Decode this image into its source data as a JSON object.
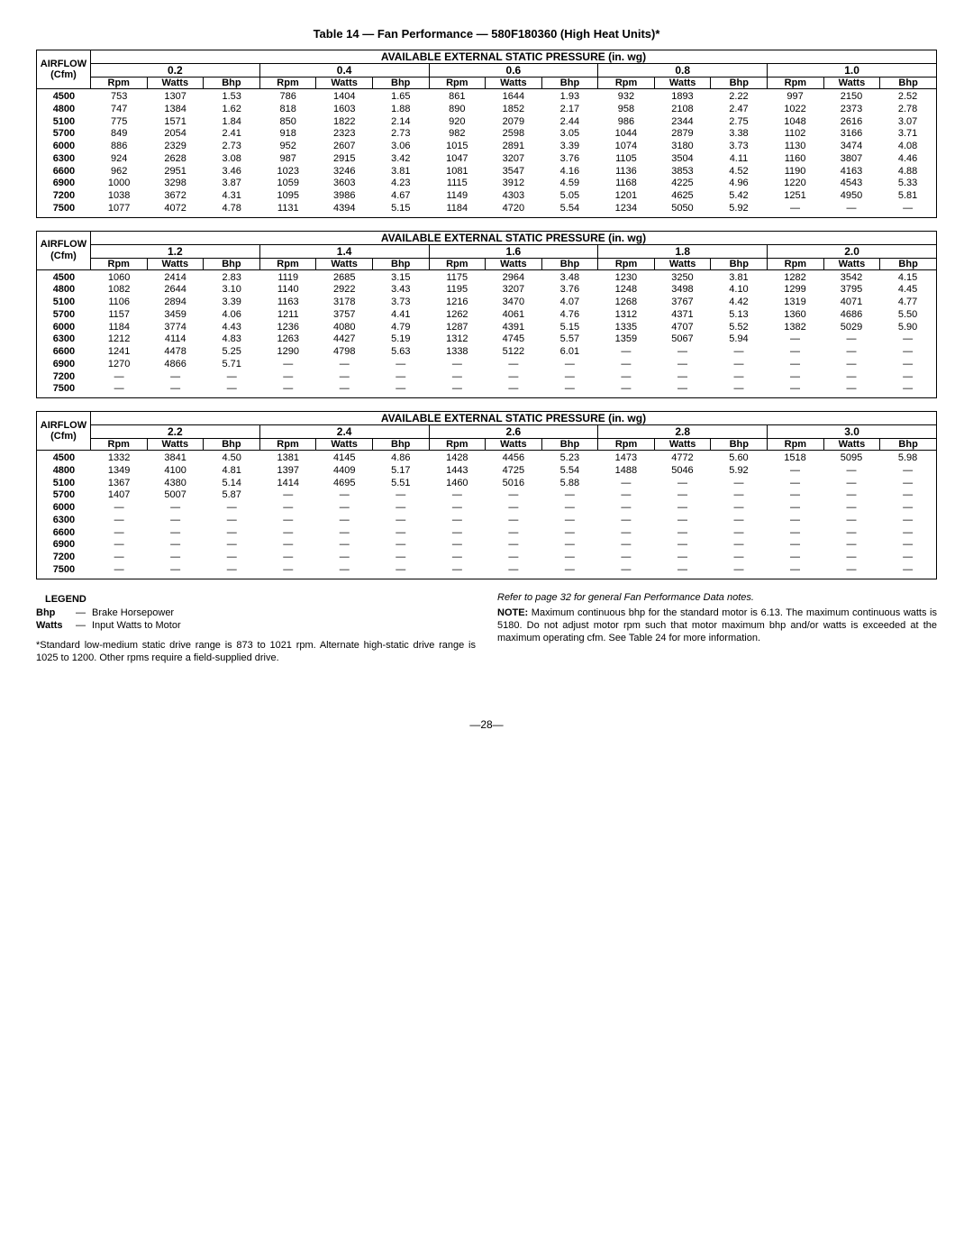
{
  "title": "Table 14 — Fan Performance — 580F180360 (High Heat Units)*",
  "pressure_header": "AVAILABLE EXTERNAL STATIC PRESSURE (in. wg)",
  "airflow_label_top": "AIRFLOW",
  "airflow_label_bot": "(Cfm)",
  "sub_headers": [
    "Rpm",
    "Watts",
    "Bhp"
  ],
  "tables": [
    {
      "pressures": [
        "0.2",
        "0.4",
        "0.6",
        "0.8",
        "1.0"
      ],
      "airflows": [
        "4500",
        "4800",
        "5100",
        "5700",
        "6000",
        "6300",
        "6600",
        "6900",
        "7200",
        "7500"
      ],
      "rows": [
        [
          "753",
          "1307",
          "1.53",
          "786",
          "1404",
          "1.65",
          "861",
          "1644",
          "1.93",
          "932",
          "1893",
          "2.22",
          "997",
          "2150",
          "2.52"
        ],
        [
          "747",
          "1384",
          "1.62",
          "818",
          "1603",
          "1.88",
          "890",
          "1852",
          "2.17",
          "958",
          "2108",
          "2.47",
          "1022",
          "2373",
          "2.78"
        ],
        [
          "775",
          "1571",
          "1.84",
          "850",
          "1822",
          "2.14",
          "920",
          "2079",
          "2.44",
          "986",
          "2344",
          "2.75",
          "1048",
          "2616",
          "3.07"
        ],
        [
          "849",
          "2054",
          "2.41",
          "918",
          "2323",
          "2.73",
          "982",
          "2598",
          "3.05",
          "1044",
          "2879",
          "3.38",
          "1102",
          "3166",
          "3.71"
        ],
        [
          "886",
          "2329",
          "2.73",
          "952",
          "2607",
          "3.06",
          "1015",
          "2891",
          "3.39",
          "1074",
          "3180",
          "3.73",
          "1130",
          "3474",
          "4.08"
        ],
        [
          "924",
          "2628",
          "3.08",
          "987",
          "2915",
          "3.42",
          "1047",
          "3207",
          "3.76",
          "1105",
          "3504",
          "4.11",
          "1160",
          "3807",
          "4.46"
        ],
        [
          "962",
          "2951",
          "3.46",
          "1023",
          "3246",
          "3.81",
          "1081",
          "3547",
          "4.16",
          "1136",
          "3853",
          "4.52",
          "1190",
          "4163",
          "4.88"
        ],
        [
          "1000",
          "3298",
          "3.87",
          "1059",
          "3603",
          "4.23",
          "1115",
          "3912",
          "4.59",
          "1168",
          "4225",
          "4.96",
          "1220",
          "4543",
          "5.33"
        ],
        [
          "1038",
          "3672",
          "4.31",
          "1095",
          "3986",
          "4.67",
          "1149",
          "4303",
          "5.05",
          "1201",
          "4625",
          "5.42",
          "1251",
          "4950",
          "5.81"
        ],
        [
          "1077",
          "4072",
          "4.78",
          "1131",
          "4394",
          "5.15",
          "1184",
          "4720",
          "5.54",
          "1234",
          "5050",
          "5.92",
          "—",
          "—",
          "—"
        ]
      ]
    },
    {
      "pressures": [
        "1.2",
        "1.4",
        "1.6",
        "1.8",
        "2.0"
      ],
      "airflows": [
        "4500",
        "4800",
        "5100",
        "5700",
        "6000",
        "6300",
        "6600",
        "6900",
        "7200",
        "7500"
      ],
      "rows": [
        [
          "1060",
          "2414",
          "2.83",
          "1119",
          "2685",
          "3.15",
          "1175",
          "2964",
          "3.48",
          "1230",
          "3250",
          "3.81",
          "1282",
          "3542",
          "4.15"
        ],
        [
          "1082",
          "2644",
          "3.10",
          "1140",
          "2922",
          "3.43",
          "1195",
          "3207",
          "3.76",
          "1248",
          "3498",
          "4.10",
          "1299",
          "3795",
          "4.45"
        ],
        [
          "1106",
          "2894",
          "3.39",
          "1163",
          "3178",
          "3.73",
          "1216",
          "3470",
          "4.07",
          "1268",
          "3767",
          "4.42",
          "1319",
          "4071",
          "4.77"
        ],
        [
          "1157",
          "3459",
          "4.06",
          "1211",
          "3757",
          "4.41",
          "1262",
          "4061",
          "4.76",
          "1312",
          "4371",
          "5.13",
          "1360",
          "4686",
          "5.50"
        ],
        [
          "1184",
          "3774",
          "4.43",
          "1236",
          "4080",
          "4.79",
          "1287",
          "4391",
          "5.15",
          "1335",
          "4707",
          "5.52",
          "1382",
          "5029",
          "5.90"
        ],
        [
          "1212",
          "4114",
          "4.83",
          "1263",
          "4427",
          "5.19",
          "1312",
          "4745",
          "5.57",
          "1359",
          "5067",
          "5.94",
          "—",
          "—",
          "—"
        ],
        [
          "1241",
          "4478",
          "5.25",
          "1290",
          "4798",
          "5.63",
          "1338",
          "5122",
          "6.01",
          "—",
          "—",
          "—",
          "—",
          "—",
          "—"
        ],
        [
          "1270",
          "4866",
          "5.71",
          "—",
          "—",
          "—",
          "—",
          "—",
          "—",
          "—",
          "—",
          "—",
          "—",
          "—",
          "—"
        ],
        [
          "—",
          "—",
          "—",
          "—",
          "—",
          "—",
          "—",
          "—",
          "—",
          "—",
          "—",
          "—",
          "—",
          "—",
          "—"
        ],
        [
          "—",
          "—",
          "—",
          "—",
          "—",
          "—",
          "—",
          "—",
          "—",
          "—",
          "—",
          "—",
          "—",
          "—",
          "—"
        ]
      ]
    },
    {
      "pressures": [
        "2.2",
        "2.4",
        "2.6",
        "2.8",
        "3.0"
      ],
      "airflows": [
        "4500",
        "4800",
        "5100",
        "5700",
        "6000",
        "6300",
        "6600",
        "6900",
        "7200",
        "7500"
      ],
      "rows": [
        [
          "1332",
          "3841",
          "4.50",
          "1381",
          "4145",
          "4.86",
          "1428",
          "4456",
          "5.23",
          "1473",
          "4772",
          "5.60",
          "1518",
          "5095",
          "5.98"
        ],
        [
          "1349",
          "4100",
          "4.81",
          "1397",
          "4409",
          "5.17",
          "1443",
          "4725",
          "5.54",
          "1488",
          "5046",
          "5.92",
          "—",
          "—",
          "—"
        ],
        [
          "1367",
          "4380",
          "5.14",
          "1414",
          "4695",
          "5.51",
          "1460",
          "5016",
          "5.88",
          "—",
          "—",
          "—",
          "—",
          "—",
          "—"
        ],
        [
          "1407",
          "5007",
          "5.87",
          "—",
          "—",
          "—",
          "—",
          "—",
          "—",
          "—",
          "—",
          "—",
          "—",
          "—",
          "—"
        ],
        [
          "—",
          "—",
          "—",
          "—",
          "—",
          "—",
          "—",
          "—",
          "—",
          "—",
          "—",
          "—",
          "—",
          "—",
          "—"
        ],
        [
          "—",
          "—",
          "—",
          "—",
          "—",
          "—",
          "—",
          "—",
          "—",
          "—",
          "—",
          "—",
          "—",
          "—",
          "—"
        ],
        [
          "—",
          "—",
          "—",
          "—",
          "—",
          "—",
          "—",
          "—",
          "—",
          "—",
          "—",
          "—",
          "—",
          "—",
          "—"
        ],
        [
          "—",
          "—",
          "—",
          "—",
          "—",
          "—",
          "—",
          "—",
          "—",
          "—",
          "—",
          "—",
          "—",
          "—",
          "—"
        ],
        [
          "—",
          "—",
          "—",
          "—",
          "—",
          "—",
          "—",
          "—",
          "—",
          "—",
          "—",
          "—",
          "—",
          "—",
          "—"
        ],
        [
          "—",
          "—",
          "—",
          "—",
          "—",
          "—",
          "—",
          "—",
          "—",
          "—",
          "—",
          "—",
          "—",
          "—",
          "—"
        ]
      ]
    }
  ],
  "legend_title": "LEGEND",
  "legend": [
    {
      "abbr": "Bhp",
      "desc": "Brake Horsepower"
    },
    {
      "abbr": "Watts",
      "desc": "Input Watts to Motor"
    }
  ],
  "footnote_left": "*Standard low-medium static drive range is 873 to 1021 rpm. Alternate high-static drive range is 1025 to 1200. Other rpms require a field-supplied drive.",
  "note_italic": "Refer to page 32 for general Fan Performance Data notes.",
  "note_label": "NOTE:",
  "note_body": " Maximum continuous bhp for the standard motor is 6.13. The maximum continuous watts is 5180. Do not adjust motor rpm such that motor maximum bhp and/or watts is exceeded at the maximum operating cfm.  See Table 24 for more information.",
  "page_number": "—28—"
}
